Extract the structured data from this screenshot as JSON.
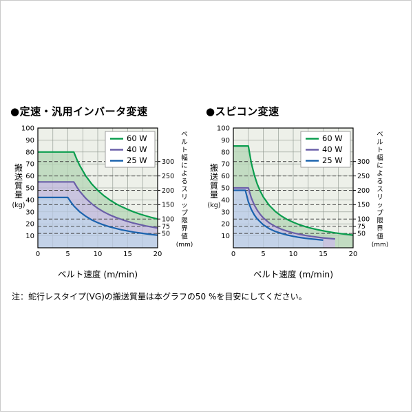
{
  "note": "注：蛇行レスタイプ(VG)の搬送質量は本グラフの50 %を目安にしてください。",
  "colors": {
    "plot_bg": "#edf0e9",
    "grid": "#9aa29a",
    "dash": "#444444",
    "axis": "#000000",
    "green": "#0a9d4e",
    "purple": "#6a5fa8",
    "blue": "#1b63ae"
  },
  "chart_data": [
    {
      "type": "area",
      "title": "●定速・汎用インバータ変速",
      "xlabel": "ベルト速度 (m/min)",
      "ylabel": "搬送質量",
      "ylabel_unit": "(kg)",
      "right_axis_label": "ベルト幅によるスリップ限界値",
      "right_axis_unit": "(mm)",
      "xlim": [
        0,
        20
      ],
      "ylim": [
        0,
        100
      ],
      "x_ticks": [
        0,
        5,
        10,
        15,
        20
      ],
      "x_minor_step": 2.5,
      "y_tick_step": 10,
      "grid": true,
      "legend_position": "top-right",
      "legend": [
        {
          "label": "60 W",
          "color": "#0a9d4e"
        },
        {
          "label": "40 W",
          "color": "#6a5fa8"
        },
        {
          "label": "25 W",
          "color": "#1b63ae"
        }
      ],
      "slip_limits": [
        {
          "label": "300",
          "kg": 72
        },
        {
          "label": "250",
          "kg": 60
        },
        {
          "label": "200",
          "kg": 48
        },
        {
          "label": "150",
          "kg": 36
        },
        {
          "label": "100",
          "kg": 24
        },
        {
          "label": "75",
          "kg": 18
        },
        {
          "label": "50",
          "kg": 12
        }
      ],
      "series": [
        {
          "name": "60W",
          "color": "#0a9d4e",
          "fill": "#c2dcc2",
          "points": [
            [
              0,
              80
            ],
            [
              6,
              80
            ],
            [
              6.5,
              73.8
            ],
            [
              7,
              68.6
            ],
            [
              8,
              60
            ],
            [
              9,
              53.3
            ],
            [
              10,
              48
            ],
            [
              11,
              43.6
            ],
            [
              12,
              40
            ],
            [
              13,
              36.9
            ],
            [
              14,
              34.3
            ],
            [
              15,
              32
            ],
            [
              16,
              30
            ],
            [
              17,
              28.2
            ],
            [
              18,
              26.7
            ],
            [
              19,
              25.3
            ],
            [
              20,
              24
            ]
          ]
        },
        {
          "name": "40W",
          "color": "#6a5fa8",
          "fill": "#c9c4df",
          "points": [
            [
              0,
              55
            ],
            [
              6,
              55
            ],
            [
              6.5,
              50.8
            ],
            [
              7,
              47.1
            ],
            [
              8,
              41.3
            ],
            [
              9,
              36.7
            ],
            [
              10,
              33
            ],
            [
              11,
              30
            ],
            [
              12,
              27.5
            ],
            [
              13,
              25.4
            ],
            [
              14,
              23.6
            ],
            [
              15,
              22
            ],
            [
              16,
              20.6
            ],
            [
              17,
              19.4
            ],
            [
              18,
              18.3
            ],
            [
              19,
              17.4
            ],
            [
              20,
              16.5
            ]
          ]
        },
        {
          "name": "25W",
          "color": "#1b63ae",
          "fill": "#c3d2e8",
          "points": [
            [
              0,
              42
            ],
            [
              5,
              42
            ],
            [
              5.5,
              38.2
            ],
            [
              6,
              35
            ],
            [
              7,
              30
            ],
            [
              8,
              26.3
            ],
            [
              9,
              23.3
            ],
            [
              10,
              21
            ],
            [
              11,
              19.1
            ],
            [
              12,
              17.5
            ],
            [
              13,
              16.2
            ],
            [
              14,
              15
            ],
            [
              15,
              14
            ],
            [
              16,
              13.1
            ],
            [
              17,
              12.4
            ],
            [
              18,
              11.7
            ],
            [
              19,
              11.1
            ],
            [
              20,
              10.5
            ]
          ]
        }
      ]
    },
    {
      "type": "area",
      "title": "●スピコン変速",
      "xlabel": "ベルト速度 (m/min)",
      "ylabel": "搬送質量",
      "ylabel_unit": "(kg)",
      "right_axis_label": "ベルト幅によるスリップ限界値",
      "right_axis_unit": "(mm)",
      "xlim": [
        0,
        20
      ],
      "ylim": [
        0,
        100
      ],
      "x_ticks": [
        0,
        5,
        10,
        15,
        20
      ],
      "x_minor_step": 2.5,
      "y_tick_step": 10,
      "grid": true,
      "legend_position": "top-right",
      "legend": [
        {
          "label": "60 W",
          "color": "#0a9d4e"
        },
        {
          "label": "40 W",
          "color": "#6a5fa8"
        },
        {
          "label": "25 W",
          "color": "#1b63ae"
        }
      ],
      "slip_limits": [
        {
          "label": "300",
          "kg": 72
        },
        {
          "label": "250",
          "kg": 60
        },
        {
          "label": "200",
          "kg": 48
        },
        {
          "label": "150",
          "kg": 36
        },
        {
          "label": "100",
          "kg": 24
        },
        {
          "label": "75",
          "kg": 18
        },
        {
          "label": "50",
          "kg": 12
        }
      ],
      "series": [
        {
          "name": "60W",
          "color": "#0a9d4e",
          "fill": "#c2dcc2",
          "points": [
            [
              0,
              85
            ],
            [
              2.5,
              85
            ],
            [
              3,
              70.8
            ],
            [
              3.5,
              60.7
            ],
            [
              4,
              53.1
            ],
            [
              4.5,
              47.2
            ],
            [
              5,
              42.5
            ],
            [
              6,
              35.4
            ],
            [
              7,
              30.4
            ],
            [
              8,
              26.6
            ],
            [
              9,
              23.6
            ],
            [
              10,
              21.3
            ],
            [
              11,
              19.3
            ],
            [
              12,
              17.7
            ],
            [
              13,
              16.3
            ],
            [
              14,
              15.2
            ],
            [
              15,
              14.2
            ],
            [
              16,
              13.3
            ],
            [
              17,
              12.5
            ],
            [
              18,
              11.8
            ],
            [
              19,
              11.2
            ],
            [
              20,
              10.6
            ]
          ]
        },
        {
          "name": "40W",
          "color": "#6a5fa8",
          "fill": "#c9c4df",
          "points": [
            [
              0,
              50
            ],
            [
              2.5,
              50
            ],
            [
              3,
              41.7
            ],
            [
              3.5,
              35.7
            ],
            [
              4,
              31.3
            ],
            [
              4.5,
              27.8
            ],
            [
              5,
              25
            ],
            [
              6,
              20.8
            ],
            [
              7,
              17.9
            ],
            [
              8,
              15.6
            ],
            [
              9,
              13.9
            ],
            [
              10,
              12.5
            ],
            [
              11,
              11.4
            ],
            [
              12,
              10.4
            ],
            [
              13,
              9.6
            ],
            [
              14,
              8.9
            ],
            [
              15,
              8.3
            ],
            [
              16,
              7.8
            ],
            [
              17,
              7.4
            ]
          ]
        },
        {
          "name": "25W",
          "color": "#1b63ae",
          "fill": "#c3d2e8",
          "points": [
            [
              0,
              48
            ],
            [
              2,
              48
            ],
            [
              2.5,
              38.4
            ],
            [
              3,
              32
            ],
            [
              3.5,
              27.4
            ],
            [
              4,
              24
            ],
            [
              5,
              19.2
            ],
            [
              6,
              16
            ],
            [
              7,
              13.7
            ],
            [
              8,
              12
            ],
            [
              9,
              10.7
            ],
            [
              10,
              9.6
            ],
            [
              11,
              8.7
            ],
            [
              12,
              8
            ],
            [
              13,
              7.4
            ],
            [
              14,
              6.9
            ],
            [
              15,
              6.4
            ]
          ]
        }
      ]
    }
  ]
}
